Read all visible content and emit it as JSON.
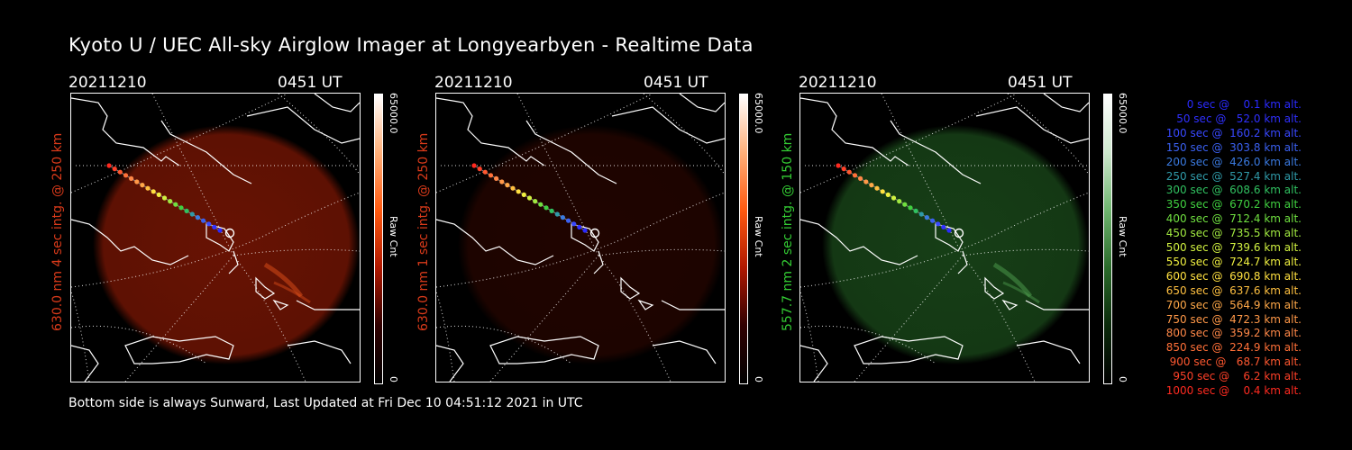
{
  "title": "Kyoto U / UEC All-sky Airglow Imager at Longyearbyen - Realtime Data",
  "footer": "Bottom side is always Sunward, Last Updated at Fri Dec 10 04:51:12 2021 in UTC",
  "panels": [
    {
      "date": "20211210",
      "time": "0451 UT",
      "label": "630.0 nm 4 sec intg. @ 250 km",
      "label_color": "#d93a1a",
      "cbar_max": "65000.0",
      "cbar_min": "0",
      "cbar_unit": "Raw Cnt",
      "glow_color": "#7a1604",
      "glow_opacity": 0.85,
      "cbar_gradient": [
        "#ffffff",
        "#ffb07a",
        "#ff5a10",
        "#b01800",
        "#300000",
        "#000000"
      ]
    },
    {
      "date": "20211210",
      "time": "0451 UT",
      "label": "630.0 nm 1 sec intg. @ 250 km",
      "label_color": "#d93a1a",
      "cbar_max": "65000.0",
      "cbar_min": "0",
      "cbar_unit": "Raw Cnt",
      "glow_color": "#3a0800",
      "glow_opacity": 0.55,
      "cbar_gradient": [
        "#ffffff",
        "#ffb07a",
        "#ff5a10",
        "#b01800",
        "#300000",
        "#000000"
      ]
    },
    {
      "date": "20211210",
      "time": "0451 UT",
      "label": "557.7 nm 2 sec intg. @ 150 km",
      "label_color": "#33cc33",
      "cbar_max": "65000.0",
      "cbar_min": "0",
      "cbar_unit": "Raw Cnt",
      "glow_color": "#1c4e1c",
      "glow_opacity": 0.8,
      "cbar_gradient": [
        "#ffffff",
        "#cfe8cf",
        "#6fb56f",
        "#2a6a2a",
        "#0b2a0b",
        "#000000"
      ]
    }
  ],
  "legend": [
    {
      "text": "0 sec @    0.1 km alt.",
      "color": "#2a2aff"
    },
    {
      "text": "50 sec @   52.0 km alt.",
      "color": "#3030ff"
    },
    {
      "text": "100 sec @  160.2 km alt.",
      "color": "#3848ff"
    },
    {
      "text": "150 sec @  303.8 km alt.",
      "color": "#3a60f0"
    },
    {
      "text": "200 sec @  426.0 km alt.",
      "color": "#3a7ae0"
    },
    {
      "text": "250 sec @  527.4 km alt.",
      "color": "#2f9aa8"
    },
    {
      "text": "300 sec @  608.6 km alt.",
      "color": "#30c060"
    },
    {
      "text": "350 sec @  670.2 km alt.",
      "color": "#40d040"
    },
    {
      "text": "400 sec @  712.4 km alt.",
      "color": "#70e040"
    },
    {
      "text": "450 sec @  735.5 km alt.",
      "color": "#a0e840"
    },
    {
      "text": "500 sec @  739.6 km alt.",
      "color": "#d0f040"
    },
    {
      "text": "550 sec @  724.7 km alt.",
      "color": "#f0f040"
    },
    {
      "text": "600 sec @  690.8 km alt.",
      "color": "#ffe040"
    },
    {
      "text": "650 sec @  637.6 km alt.",
      "color": "#ffc040"
    },
    {
      "text": "700 sec @  564.9 km alt.",
      "color": "#ffa848"
    },
    {
      "text": "750 sec @  472.3 km alt.",
      "color": "#ff9848"
    },
    {
      "text": "800 sec @  359.2 km alt.",
      "color": "#ff8848"
    },
    {
      "text": "850 sec @  224.9 km alt.",
      "color": "#ff7038"
    },
    {
      "text": "900 sec @   68.7 km alt.",
      "color": "#ff5830"
    },
    {
      "text": "950 sec @    6.2 km alt.",
      "color": "#ff4028"
    },
    {
      "text": "1000 sec @    0.4 km alt.",
      "color": "#ff2a20"
    }
  ]
}
